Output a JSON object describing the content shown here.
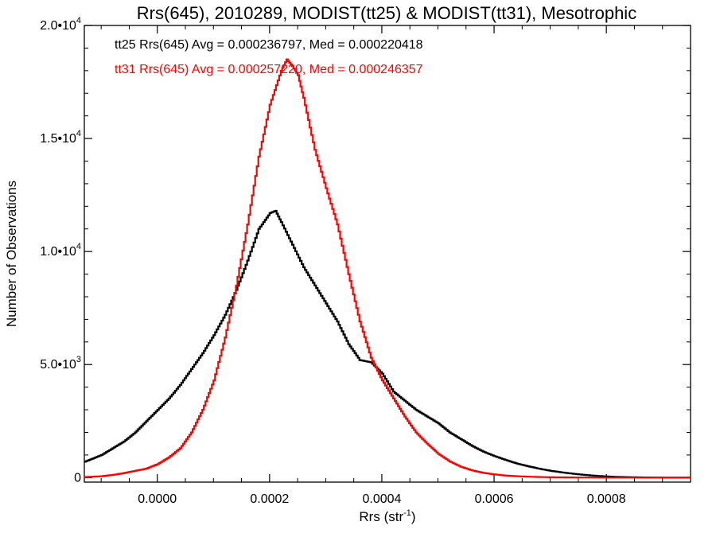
{
  "chart_data": {
    "type": "line",
    "title": "Rrs(645), 2010289, MODIST(tt25) & MODIST(tt31), Mesotrophic",
    "xlabel": "Rrs (str",
    "xlabel_sup": "-1",
    "xlabel_end": ")",
    "ylabel": "Number of Observations",
    "xlim": [
      -0.00013,
      0.00095
    ],
    "ylim": [
      -200,
      20000
    ],
    "grid": false,
    "x_ticks": [
      {
        "value": 0.0,
        "label": "0.0000"
      },
      {
        "value": 0.0002,
        "label": "0.0002"
      },
      {
        "value": 0.0004,
        "label": "0.0004"
      },
      {
        "value": 0.0006,
        "label": "0.0006"
      },
      {
        "value": 0.0008,
        "label": "0.0008"
      }
    ],
    "y_ticks": [
      {
        "value": 0,
        "label": "0",
        "sup": ""
      },
      {
        "value": 5000,
        "label": "5.0•10",
        "sup": "3"
      },
      {
        "value": 10000,
        "label": "1.0•10",
        "sup": "4"
      },
      {
        "value": 15000,
        "label": "1.5•10",
        "sup": "4"
      },
      {
        "value": 20000,
        "label": "2.0•10",
        "sup": "4"
      }
    ],
    "annotations": [
      {
        "text": "tt25 Rrs(645) Avg = 0.000236797, Med = 0.000220418",
        "color": "#000000"
      },
      {
        "text": "tt31 Rrs(645) Avg = 0.000257220, Med = 0.000246357",
        "color": "#ff0000"
      }
    ],
    "series": [
      {
        "name": "tt25",
        "color": "#000000",
        "x": [
          -0.00013,
          -0.0001,
          -8e-05,
          -6e-05,
          -4e-05,
          -2e-05,
          0.0,
          2e-05,
          4e-05,
          6e-05,
          8e-05,
          0.0001,
          0.00012,
          0.00014,
          0.00016,
          0.00018,
          0.0002,
          0.00021,
          0.00022,
          0.00024,
          0.00026,
          0.00028,
          0.0003,
          0.00032,
          0.00034,
          0.00036,
          0.00038,
          0.0004,
          0.00042,
          0.00044,
          0.00046,
          0.00048,
          0.0005,
          0.00052,
          0.00054,
          0.00056,
          0.00058,
          0.0006,
          0.00062,
          0.00064,
          0.00066,
          0.00068,
          0.0007,
          0.00072,
          0.00074,
          0.00076,
          0.00078,
          0.0008,
          0.00082,
          0.00084,
          0.00086,
          0.00088,
          0.0009,
          0.00092,
          0.00095
        ],
        "y": [
          700,
          1000,
          1300,
          1600,
          2000,
          2500,
          3000,
          3500,
          4100,
          4800,
          5500,
          6300,
          7200,
          8300,
          9600,
          11000,
          11700,
          11800,
          11300,
          10300,
          9300,
          8500,
          7700,
          6900,
          5900,
          5200,
          5100,
          4600,
          3800,
          3400,
          3000,
          2700,
          2400,
          2000,
          1700,
          1400,
          1150,
          950,
          780,
          620,
          500,
          390,
          300,
          230,
          170,
          120,
          80,
          50,
          30,
          20,
          10,
          5,
          2,
          0,
          0
        ]
      },
      {
        "name": "tt31",
        "color": "#ff0000",
        "x": [
          -0.00013,
          -0.0001,
          -8e-05,
          -6e-05,
          -4e-05,
          -2e-05,
          0.0,
          2e-05,
          4e-05,
          6e-05,
          8e-05,
          0.0001,
          0.00012,
          0.00014,
          0.00016,
          0.00018,
          0.0002,
          0.00022,
          0.00023,
          0.00024,
          0.00025,
          0.00026,
          0.00028,
          0.0003,
          0.00032,
          0.00034,
          0.00036,
          0.00038,
          0.0004,
          0.00042,
          0.00044,
          0.00046,
          0.00048,
          0.0005,
          0.00052,
          0.00054,
          0.00056,
          0.00058,
          0.0006,
          0.00062,
          0.00064,
          0.00066,
          0.00068,
          0.0007,
          0.00072,
          0.00074,
          0.00076,
          0.00078,
          0.0008,
          0.00085,
          0.0009,
          0.00095
        ],
        "y": [
          20,
          60,
          120,
          200,
          300,
          400,
          600,
          900,
          1300,
          2000,
          3000,
          4300,
          6200,
          8500,
          11200,
          14200,
          16500,
          18000,
          18500,
          18200,
          17800,
          16800,
          14500,
          12800,
          11200,
          9000,
          6900,
          5300,
          4300,
          3500,
          2700,
          2000,
          1500,
          1050,
          720,
          480,
          320,
          210,
          140,
          90,
          60,
          40,
          25,
          15,
          10,
          6,
          4,
          2,
          1,
          0,
          0,
          0
        ]
      }
    ]
  }
}
